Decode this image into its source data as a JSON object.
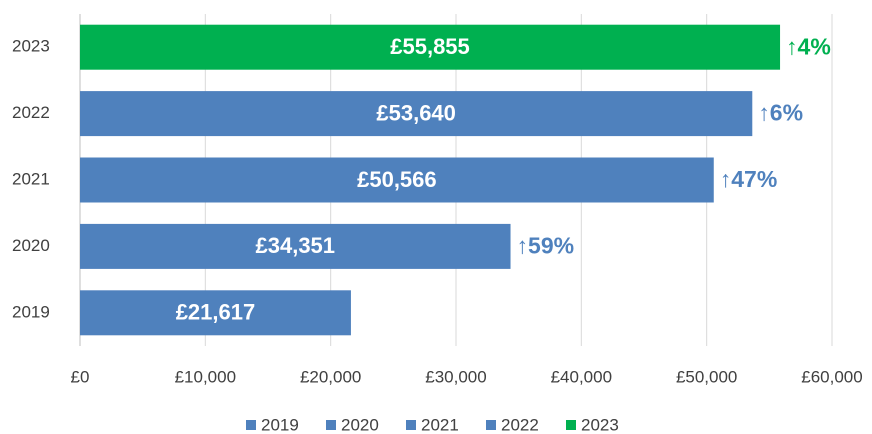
{
  "chart_data": {
    "type": "bar",
    "orientation": "horizontal",
    "categories": [
      "2019",
      "2020",
      "2021",
      "2022",
      "2023"
    ],
    "values": [
      21617,
      34351,
      50566,
      53640,
      55855
    ],
    "value_labels": [
      "£21,617",
      "£34,351",
      "£50,566",
      "£53,640",
      "£55,855"
    ],
    "colors": [
      "#4f81bd",
      "#4f81bd",
      "#4f81bd",
      "#4f81bd",
      "#00b050"
    ],
    "annotations": [
      {
        "category": "2020",
        "text": "↑59%"
      },
      {
        "category": "2021",
        "text": "↑47%"
      },
      {
        "category": "2022",
        "text": "↑6%"
      },
      {
        "category": "2023",
        "text": "↑4%"
      }
    ],
    "xlim": [
      0,
      60000
    ],
    "xticks": [
      {
        "value": 0,
        "label": "£0"
      },
      {
        "value": 10000,
        "label": "£10,000"
      },
      {
        "value": 20000,
        "label": "£20,000"
      },
      {
        "value": 30000,
        "label": "£30,000"
      },
      {
        "value": 40000,
        "label": "£40,000"
      },
      {
        "value": 50000,
        "label": "£50,000"
      },
      {
        "value": 60000,
        "label": "£60,000"
      }
    ],
    "grid": true,
    "legend": "bottom"
  }
}
